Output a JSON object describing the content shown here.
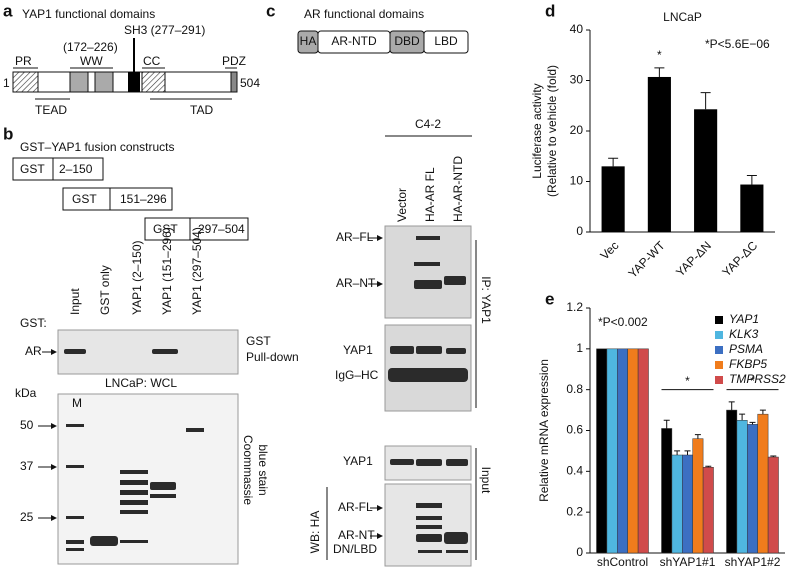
{
  "panel_labels": [
    "a",
    "b",
    "c",
    "d",
    "e"
  ],
  "a": {
    "title": "YAP1 functional domains",
    "start": "1",
    "end": "504",
    "domains": [
      "PR",
      "WW",
      "CC",
      "PDZ"
    ],
    "ww_range": "(172–226)",
    "sh3": "SH3 (277–291)",
    "regions": [
      "TEAD",
      "TAD"
    ]
  },
  "b": {
    "title": "GST–YAP1 fusion constructs",
    "constructs": [
      [
        "GST",
        "2–150"
      ],
      [
        "GST",
        "151–296"
      ],
      [
        "GST",
        "297–504"
      ]
    ],
    "gst_label": "GST:",
    "lanes": [
      "Input",
      "GST only",
      "YAP1 (2–150)",
      "YAP1 (151–296)",
      "YAP1 (297–504)"
    ],
    "band": "AR",
    "blot_label": [
      "GST",
      "Pull-down"
    ],
    "lysate": "LNCaP: WCL",
    "kda": "kDa",
    "marker": "M",
    "markers": [
      "50",
      "37",
      "25"
    ],
    "stain": [
      "Coommassie",
      "blue stain"
    ]
  },
  "c": {
    "title": "AR functional domains",
    "domains": [
      "HA",
      "AR-NTD",
      "DBD",
      "LBD"
    ],
    "cell_line": "C4-2",
    "lanes": [
      "Vector",
      "HA-AR FL",
      "HA-AR-NTD"
    ],
    "ip_bands": [
      "AR–FL",
      "AR–NT",
      "YAP1",
      "IgG–HC"
    ],
    "input_bands": [
      "YAP1",
      "AR-FL",
      "AR-NT",
      "DN/LBD"
    ],
    "wb": "WB: HA",
    "ip": "IP: YAP1",
    "input": "Input"
  },
  "chart_data": [
    {
      "type": "bar",
      "title": "LNCaP",
      "categories": [
        "Vec",
        "YAP-WT",
        "YAP-ΔN",
        "YAP-ΔC"
      ],
      "values": [
        13,
        30.7,
        24.3,
        9.4
      ],
      "errors": [
        1.6,
        1.8,
        3.3,
        1.8
      ],
      "color": "#000000",
      "ylabel": [
        "Luciferase activity",
        "(Relative to vehicle (fold)"
      ],
      "ylim": [
        0,
        40
      ],
      "yticks": [
        0,
        10,
        20,
        30,
        40
      ],
      "annotation": "*P<5.6E−06",
      "significance": "*",
      "xtick_rotation": -45,
      "grid": false
    },
    {
      "type": "bar",
      "categories": [
        "shControl",
        "shYAP1#1",
        "shYAP1#2"
      ],
      "series": [
        {
          "name": "YAP1",
          "color": "#000000",
          "values": [
            1,
            0.61,
            0.7
          ],
          "errors": [
            0,
            0.04,
            0.04
          ]
        },
        {
          "name": "KLK3",
          "color": "#4fb6e0",
          "values": [
            1,
            0.48,
            0.65
          ],
          "errors": [
            0,
            0.02,
            0.03
          ]
        },
        {
          "name": "PSMA",
          "color": "#3c6fc2",
          "values": [
            1,
            0.48,
            0.63
          ],
          "errors": [
            0,
            0.02,
            0.01
          ]
        },
        {
          "name": "FKBP5",
          "color": "#f07c1c",
          "values": [
            1,
            0.56,
            0.68
          ],
          "errors": [
            0,
            0.02,
            0.02
          ]
        },
        {
          "name": "TMPRSS2",
          "color": "#d04b4b",
          "values": [
            1,
            0.42,
            0.47
          ],
          "errors": [
            0,
            0.005,
            0.005
          ]
        }
      ],
      "ylabel": "Relative mRNA expression",
      "ylim": [
        0,
        1.2
      ],
      "yticks": [
        0,
        0.2,
        0.4,
        0.6,
        0.8,
        1,
        1.2
      ],
      "annotation": "*P<0.002",
      "significance": "*",
      "legend": "upper right",
      "grid": false
    }
  ]
}
